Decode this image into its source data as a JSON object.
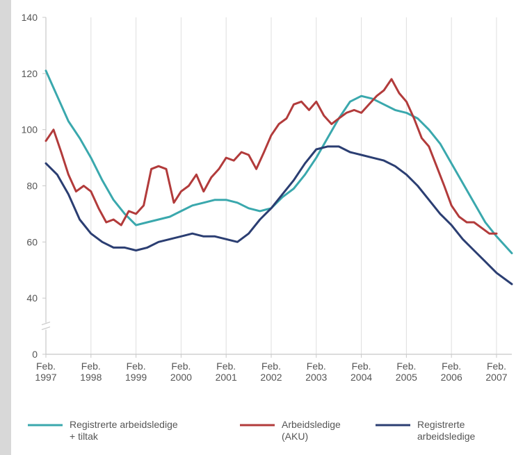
{
  "chart_data": {
    "type": "line",
    "y_ticks": [
      "140",
      "120",
      "100",
      "80",
      "60",
      "40",
      "0"
    ],
    "y_tick_values": [
      140,
      120,
      100,
      80,
      60,
      40,
      20
    ],
    "axis_break": true,
    "ylim": [
      20,
      140
    ],
    "xlim": [
      1997.08,
      2007.42
    ],
    "x_ticks": [
      {
        "l1": "Feb.",
        "l2": "1997",
        "x": 1997.08
      },
      {
        "l1": "Feb.",
        "l2": "1998",
        "x": 1998.08
      },
      {
        "l1": "Feb.",
        "l2": "1999",
        "x": 1999.08
      },
      {
        "l1": "Feb.",
        "l2": "2000",
        "x": 2000.08
      },
      {
        "l1": "Feb.",
        "l2": "2001",
        "x": 2001.08
      },
      {
        "l1": "Feb.",
        "l2": "2002",
        "x": 2002.08
      },
      {
        "l1": "Feb.",
        "l2": "2003",
        "x": 2003.08
      },
      {
        "l1": "Feb.",
        "l2": "2004",
        "x": 2004.08
      },
      {
        "l1": "Feb.",
        "l2": "2005",
        "x": 2005.08
      },
      {
        "l1": "Feb.",
        "l2": "2006",
        "x": 2006.08
      },
      {
        "l1": "Feb.",
        "l2": "2007",
        "x": 2007.08
      }
    ],
    "grid": "vertical",
    "legend_position": "bottom",
    "series": [
      {
        "name_lines": [
          "Registrerte arbeidsledige",
          "+ tiltak"
        ],
        "color": "#3aa8ad",
        "points": [
          [
            1997.08,
            121
          ],
          [
            1997.33,
            112
          ],
          [
            1997.58,
            103
          ],
          [
            1997.83,
            97
          ],
          [
            1998.08,
            90
          ],
          [
            1998.33,
            82
          ],
          [
            1998.58,
            75
          ],
          [
            1998.83,
            70
          ],
          [
            1999.08,
            66
          ],
          [
            1999.33,
            67
          ],
          [
            1999.58,
            68
          ],
          [
            1999.83,
            69
          ],
          [
            2000.08,
            71
          ],
          [
            2000.33,
            73
          ],
          [
            2000.58,
            74
          ],
          [
            2000.83,
            75
          ],
          [
            2001.08,
            75
          ],
          [
            2001.33,
            74
          ],
          [
            2001.58,
            72
          ],
          [
            2001.83,
            71
          ],
          [
            2002.08,
            72
          ],
          [
            2002.33,
            76
          ],
          [
            2002.58,
            79
          ],
          [
            2002.83,
            84
          ],
          [
            2003.08,
            90
          ],
          [
            2003.33,
            97
          ],
          [
            2003.58,
            104
          ],
          [
            2003.83,
            110
          ],
          [
            2004.08,
            112
          ],
          [
            2004.33,
            111
          ],
          [
            2004.58,
            109
          ],
          [
            2004.83,
            107
          ],
          [
            2005.08,
            106
          ],
          [
            2005.33,
            104
          ],
          [
            2005.58,
            100
          ],
          [
            2005.83,
            95
          ],
          [
            2006.08,
            88
          ],
          [
            2006.33,
            81
          ],
          [
            2006.58,
            74
          ],
          [
            2006.83,
            67
          ],
          [
            2007.08,
            62
          ],
          [
            2007.42,
            56
          ]
        ]
      },
      {
        "name_lines": [
          "Arbeidsledige",
          "(AKU)"
        ],
        "color": "#b23b3b",
        "points": [
          [
            1997.08,
            96
          ],
          [
            1997.25,
            100
          ],
          [
            1997.42,
            92
          ],
          [
            1997.58,
            84
          ],
          [
            1997.75,
            78
          ],
          [
            1997.92,
            80
          ],
          [
            1998.08,
            78
          ],
          [
            1998.25,
            72
          ],
          [
            1998.42,
            67
          ],
          [
            1998.58,
            68
          ],
          [
            1998.75,
            66
          ],
          [
            1998.92,
            71
          ],
          [
            1999.08,
            70
          ],
          [
            1999.25,
            73
          ],
          [
            1999.42,
            86
          ],
          [
            1999.58,
            87
          ],
          [
            1999.75,
            86
          ],
          [
            1999.92,
            74
          ],
          [
            2000.08,
            78
          ],
          [
            2000.25,
            80
          ],
          [
            2000.42,
            84
          ],
          [
            2000.58,
            78
          ],
          [
            2000.75,
            83
          ],
          [
            2000.92,
            86
          ],
          [
            2001.08,
            90
          ],
          [
            2001.25,
            89
          ],
          [
            2001.42,
            92
          ],
          [
            2001.58,
            91
          ],
          [
            2001.75,
            86
          ],
          [
            2001.92,
            92
          ],
          [
            2002.08,
            98
          ],
          [
            2002.25,
            102
          ],
          [
            2002.42,
            104
          ],
          [
            2002.58,
            109
          ],
          [
            2002.75,
            110
          ],
          [
            2002.92,
            107
          ],
          [
            2003.08,
            110
          ],
          [
            2003.25,
            105
          ],
          [
            2003.42,
            102
          ],
          [
            2003.58,
            104
          ],
          [
            2003.75,
            106
          ],
          [
            2003.92,
            107
          ],
          [
            2004.08,
            106
          ],
          [
            2004.25,
            109
          ],
          [
            2004.42,
            112
          ],
          [
            2004.58,
            114
          ],
          [
            2004.75,
            118
          ],
          [
            2004.92,
            113
          ],
          [
            2005.08,
            110
          ],
          [
            2005.25,
            104
          ],
          [
            2005.42,
            97
          ],
          [
            2005.58,
            94
          ],
          [
            2005.75,
            87
          ],
          [
            2005.92,
            80
          ],
          [
            2006.08,
            73
          ],
          [
            2006.25,
            69
          ],
          [
            2006.42,
            67
          ],
          [
            2006.58,
            67
          ],
          [
            2006.75,
            65
          ],
          [
            2006.92,
            63
          ],
          [
            2007.08,
            63
          ]
        ]
      },
      {
        "name_lines": [
          "Registrerte",
          "arbeidsledige"
        ],
        "color": "#2b3e72",
        "points": [
          [
            1997.08,
            88
          ],
          [
            1997.33,
            84
          ],
          [
            1997.58,
            77
          ],
          [
            1997.83,
            68
          ],
          [
            1998.08,
            63
          ],
          [
            1998.33,
            60
          ],
          [
            1998.58,
            58
          ],
          [
            1998.83,
            58
          ],
          [
            1999.08,
            57
          ],
          [
            1999.33,
            58
          ],
          [
            1999.58,
            60
          ],
          [
            1999.83,
            61
          ],
          [
            2000.08,
            62
          ],
          [
            2000.33,
            63
          ],
          [
            2000.58,
            62
          ],
          [
            2000.83,
            62
          ],
          [
            2001.08,
            61
          ],
          [
            2001.33,
            60
          ],
          [
            2001.58,
            63
          ],
          [
            2001.83,
            68
          ],
          [
            2002.08,
            72
          ],
          [
            2002.33,
            77
          ],
          [
            2002.58,
            82
          ],
          [
            2002.83,
            88
          ],
          [
            2003.08,
            93
          ],
          [
            2003.33,
            94
          ],
          [
            2003.58,
            94
          ],
          [
            2003.83,
            92
          ],
          [
            2004.08,
            91
          ],
          [
            2004.33,
            90
          ],
          [
            2004.58,
            89
          ],
          [
            2004.83,
            87
          ],
          [
            2005.08,
            84
          ],
          [
            2005.33,
            80
          ],
          [
            2005.58,
            75
          ],
          [
            2005.83,
            70
          ],
          [
            2006.08,
            66
          ],
          [
            2006.33,
            61
          ],
          [
            2006.58,
            57
          ],
          [
            2006.83,
            53
          ],
          [
            2007.08,
            49
          ],
          [
            2007.42,
            45
          ]
        ]
      }
    ]
  }
}
